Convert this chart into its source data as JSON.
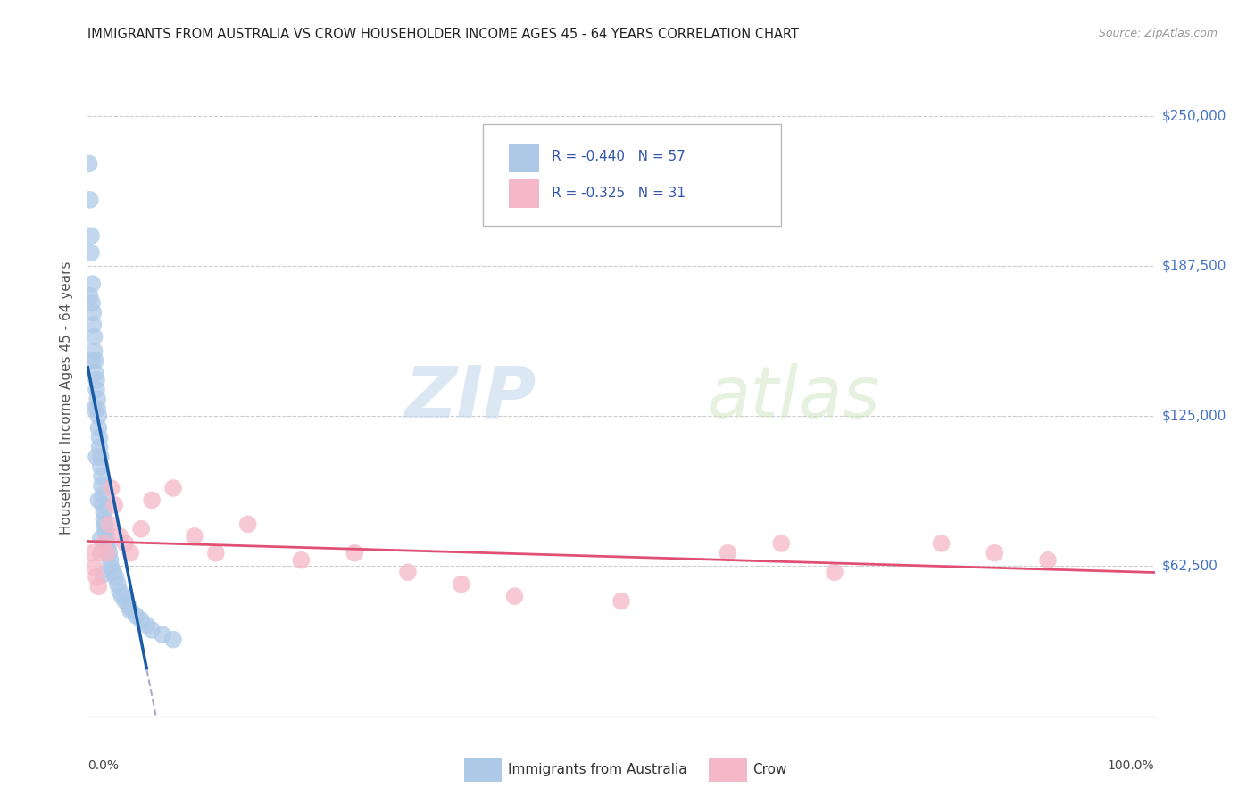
{
  "title": "IMMIGRANTS FROM AUSTRALIA VS CROW HOUSEHOLDER INCOME AGES 45 - 64 YEARS CORRELATION CHART",
  "source": "Source: ZipAtlas.com",
  "ylabel": "Householder Income Ages 45 - 64 years",
  "ytick_labels": [
    "$62,500",
    "$125,000",
    "$187,500",
    "$250,000"
  ],
  "ytick_values": [
    62500,
    125000,
    187500,
    250000
  ],
  "ylim": [
    0,
    265000
  ],
  "xlim": [
    0.0,
    1.0
  ],
  "legend1_R": "-0.440",
  "legend1_N": "57",
  "legend2_R": "-0.325",
  "legend2_N": "31",
  "color_blue": "#aec9e8",
  "color_pink": "#f4b8c8",
  "line_blue": "#1a5ba6",
  "line_pink": "#e05075",
  "line_dashed_color": "#aaaacc",
  "watermark_zip": "ZIP",
  "watermark_atlas": "atlas",
  "blue_scatter_x": [
    0.001,
    0.002,
    0.003,
    0.003,
    0.004,
    0.004,
    0.005,
    0.005,
    0.006,
    0.006,
    0.007,
    0.007,
    0.008,
    0.008,
    0.009,
    0.009,
    0.01,
    0.01,
    0.011,
    0.011,
    0.012,
    0.012,
    0.013,
    0.013,
    0.014,
    0.014,
    0.015,
    0.015,
    0.016,
    0.016,
    0.017,
    0.018,
    0.019,
    0.02,
    0.021,
    0.022,
    0.024,
    0.026,
    0.028,
    0.03,
    0.032,
    0.035,
    0.038,
    0.04,
    0.045,
    0.05,
    0.055,
    0.06,
    0.07,
    0.08,
    0.002,
    0.004,
    0.006,
    0.008,
    0.01,
    0.012,
    0.014
  ],
  "blue_scatter_y": [
    230000,
    215000,
    200000,
    193000,
    180000,
    172000,
    168000,
    163000,
    158000,
    152000,
    148000,
    143000,
    140000,
    136000,
    132000,
    128000,
    125000,
    120000,
    116000,
    112000,
    108000,
    104000,
    100000,
    96000,
    92000,
    88000,
    85000,
    82000,
    80000,
    78000,
    76000,
    73000,
    71000,
    68000,
    65000,
    62000,
    60000,
    58000,
    55000,
    52000,
    50000,
    48000,
    46000,
    44000,
    42000,
    40000,
    38000,
    36000,
    34000,
    32000,
    175000,
    148000,
    128000,
    108000,
    90000,
    74000,
    59000
  ],
  "pink_scatter_x": [
    0.004,
    0.006,
    0.008,
    0.01,
    0.012,
    0.015,
    0.018,
    0.02,
    0.022,
    0.025,
    0.03,
    0.035,
    0.04,
    0.05,
    0.06,
    0.08,
    0.1,
    0.12,
    0.15,
    0.2,
    0.25,
    0.3,
    0.35,
    0.4,
    0.5,
    0.6,
    0.65,
    0.7,
    0.8,
    0.85,
    0.9
  ],
  "pink_scatter_y": [
    68000,
    62000,
    58000,
    54000,
    68000,
    72000,
    68000,
    80000,
    95000,
    88000,
    75000,
    72000,
    68000,
    78000,
    90000,
    95000,
    75000,
    68000,
    80000,
    65000,
    68000,
    60000,
    55000,
    50000,
    48000,
    68000,
    72000,
    60000,
    72000,
    68000,
    65000
  ]
}
